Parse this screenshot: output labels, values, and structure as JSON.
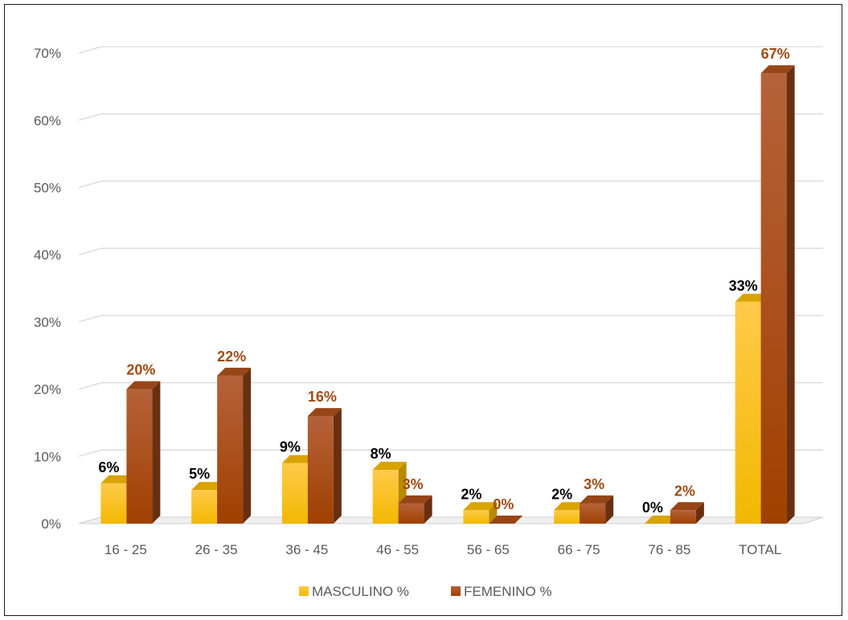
{
  "chart_data": {
    "type": "bar",
    "categories": [
      "16 - 25",
      "26 - 35",
      "36 - 45",
      "46 - 55",
      "56 - 65",
      "66 - 75",
      "76 - 85",
      "TOTAL"
    ],
    "series": [
      {
        "name": "MASCULINO %",
        "values": [
          6,
          5,
          9,
          8,
          2,
          2,
          0,
          33
        ],
        "labels": [
          "6%",
          "5%",
          "9%",
          "8%",
          "2%",
          "2%",
          "0%",
          "33%"
        ],
        "color": "#FFC000",
        "label_color": "#000000"
      },
      {
        "name": "FEMENINO %",
        "values": [
          20,
          22,
          16,
          3,
          0,
          3,
          2,
          67
        ],
        "labels": [
          "20%",
          "22%",
          "16%",
          "3%",
          "0%",
          "3%",
          "2%",
          "67%"
        ],
        "color": "#A84E1A",
        "label_color": "#9E4A14"
      }
    ],
    "y_ticks": [
      "0%",
      "10%",
      "20%",
      "30%",
      "40%",
      "50%",
      "60%",
      "70%"
    ],
    "ylim": [
      0,
      70
    ],
    "grid": true,
    "legend": "bottom",
    "style": "3d-column"
  }
}
